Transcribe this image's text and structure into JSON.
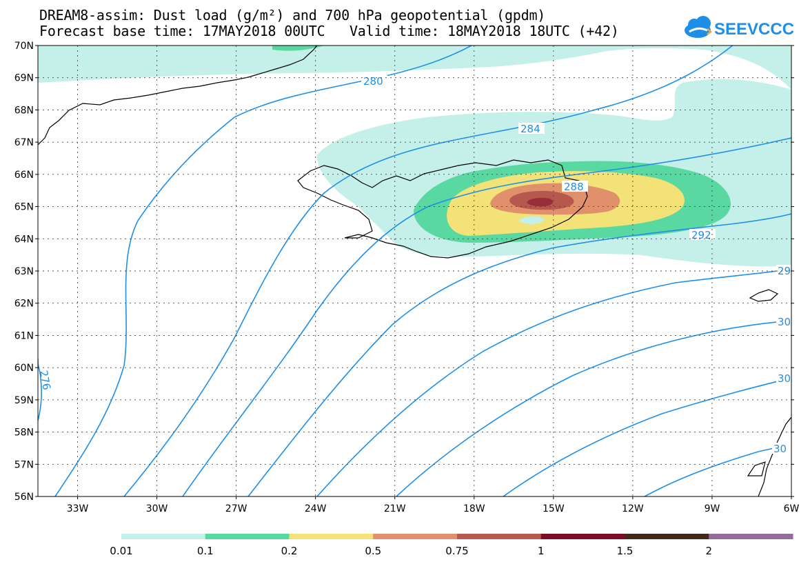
{
  "title": {
    "line1": "DREAM8-assim: Dust load (g/m²) and 700 hPa geopotential (gpdm)",
    "line2": "Forecast base time: 17MAY2018 00UTC   Valid time: 18MAY2018 18UTC (+42)"
  },
  "logo": {
    "text": "SEEVCCC",
    "icon": "cloud-logo-icon",
    "color": "#1e8fe8"
  },
  "map": {
    "lon_range": [
      -34.5,
      -6
    ],
    "lat_range": [
      56,
      70
    ],
    "grid": true,
    "lat_labels": [
      "56N",
      "57N",
      "58N",
      "59N",
      "60N",
      "61N",
      "62N",
      "63N",
      "64N",
      "65N",
      "66N",
      "67N",
      "68N",
      "69N",
      "70N"
    ],
    "lon_labels": [
      "33W",
      "30W",
      "27W",
      "24W",
      "21W",
      "18W",
      "15W",
      "12W",
      "9W",
      "6W"
    ],
    "contour_color": "#1e8fe8",
    "contour_labels": [
      "280",
      "284",
      "288",
      "292",
      "29",
      "30",
      "30",
      "30",
      "276"
    ]
  },
  "colorbar": {
    "ticks": [
      "0.01",
      "0.1",
      "0.2",
      "0.5",
      "0.75",
      "1",
      "1.5",
      "2"
    ],
    "colors": [
      "#c4f0e9",
      "#5ad8a2",
      "#f2e277",
      "#e0906b",
      "#b6584d",
      "#7d0c2b",
      "#3f2a1a",
      "#946c9b"
    ]
  }
}
